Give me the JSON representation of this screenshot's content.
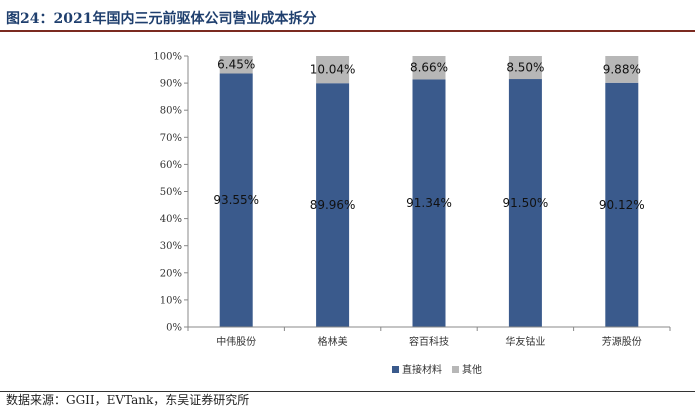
{
  "figure": {
    "title": "图24：2021年国内三元前驱体公司营业成本拆分",
    "source": "数据来源：GGII，EVTank，东吴证券研究所"
  },
  "colors": {
    "direct": "#3a5a8c",
    "other": "#b7b7b7"
  },
  "chart_data": {
    "type": "bar",
    "stacked": true,
    "percent": true,
    "categories": [
      "中伟股份",
      "格林美",
      "容百科技",
      "华友钴业",
      "芳源股份"
    ],
    "series": [
      {
        "name": "直接材料",
        "values": [
          93.55,
          89.96,
          91.34,
          91.5,
          90.12
        ],
        "labels": [
          "93.55%",
          "89.96%",
          "91.34%",
          "91.50%",
          "90.12%"
        ]
      },
      {
        "name": "其他",
        "values": [
          6.45,
          10.04,
          8.66,
          8.5,
          9.88
        ],
        "labels": [
          "6.45%",
          "10.04%",
          "8.66%",
          "8.50%",
          "9.88%"
        ]
      }
    ],
    "ylim": [
      0,
      100
    ],
    "yticks": [
      "0%",
      "10%",
      "20%",
      "30%",
      "40%",
      "50%",
      "60%",
      "70%",
      "80%",
      "90%",
      "100%"
    ],
    "legend": "bottom-right",
    "grid": false
  }
}
